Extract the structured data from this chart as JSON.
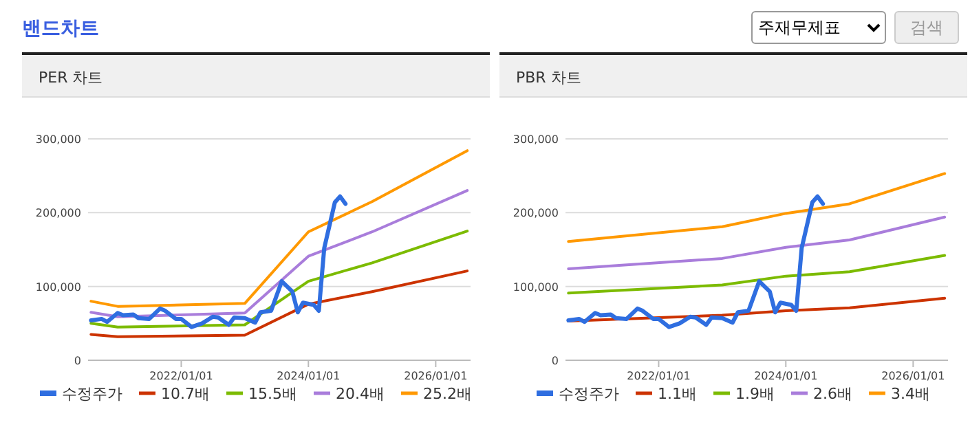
{
  "chart_data": [
    {
      "type": "other",
      "title": "밴드차트",
      "annotations": [
        "주재무제표",
        "검색"
      ]
    },
    {
      "type": "line",
      "title": "PER 차트",
      "xlim": [
        "2020-07-15",
        "2026-07-20"
      ],
      "ylim": [
        0,
        300000
      ],
      "xticks": [
        {
          "value": "2022-01-01",
          "label": "2022/01/01"
        },
        {
          "value": "2024-01-01",
          "label": "2024/01/01"
        },
        {
          "value": "2026-01-01",
          "label": "2026/01/01"
        }
      ],
      "yticks": [
        {
          "value": 0,
          "label": "0"
        },
        {
          "value": 100000,
          "label": "100,000"
        },
        {
          "value": 200000,
          "label": "200,000"
        },
        {
          "value": 300000,
          "label": "300,000"
        }
      ],
      "grid": "y",
      "legend": "bottom",
      "series": [
        {
          "name": "수정주가",
          "color": "#2f6ee0",
          "x": [
            "2020-08",
            "2020-10",
            "2020-11",
            "2021-01",
            "2021-02",
            "2021-04",
            "2021-05",
            "2021-07",
            "2021-09",
            "2021-10",
            "2021-12",
            "2022-01",
            "2022-03",
            "2022-05",
            "2022-07",
            "2022-08",
            "2022-10",
            "2022-11",
            "2023-01",
            "2023-03",
            "2023-04",
            "2023-06",
            "2023-08",
            "2023-10",
            "2023-11",
            "2023-12",
            "2024-02",
            "2024-03",
            "2024-04",
            "2024-06",
            "2024-07",
            "2024-08"
          ],
          "values": [
            54000,
            56000,
            52000,
            64000,
            61000,
            62000,
            57000,
            56000,
            70000,
            67000,
            56000,
            56000,
            45000,
            50000,
            59000,
            58000,
            48000,
            58000,
            57000,
            51000,
            65000,
            67000,
            107000,
            93000,
            65000,
            78000,
            75000,
            67000,
            152000,
            214000,
            222000,
            212000
          ]
        },
        {
          "name": "10.7배",
          "color": "#cc3300",
          "x": [
            "2020-08",
            "2021-01",
            "2023-01",
            "2024-01",
            "2025-01",
            "2026-07"
          ],
          "values": [
            35000,
            32000,
            34000,
            76000,
            93000,
            121000
          ]
        },
        {
          "name": "15.5배",
          "color": "#7cbb00",
          "x": [
            "2020-08",
            "2021-01",
            "2023-01",
            "2024-01",
            "2025-01",
            "2026-07"
          ],
          "values": [
            50000,
            45000,
            48000,
            107000,
            132000,
            175000
          ]
        },
        {
          "name": "20.4배",
          "color": "#a97ddb",
          "x": [
            "2020-08",
            "2021-01",
            "2023-01",
            "2024-01",
            "2025-01",
            "2026-07"
          ],
          "values": [
            65000,
            59000,
            64000,
            141000,
            174000,
            230000
          ]
        },
        {
          "name": "25.2배",
          "color": "#ff9900",
          "x": [
            "2020-08",
            "2021-01",
            "2023-01",
            "2024-01",
            "2025-01",
            "2026-07"
          ],
          "values": [
            80000,
            73000,
            77000,
            174000,
            215000,
            284000
          ]
        }
      ]
    },
    {
      "type": "line",
      "title": "PBR 차트",
      "xlim": [
        "2020-07-15",
        "2026-07-20"
      ],
      "ylim": [
        0,
        300000
      ],
      "xticks": [
        {
          "value": "2022-01-01",
          "label": "2022/01/01"
        },
        {
          "value": "2024-01-01",
          "label": "2024/01/01"
        },
        {
          "value": "2026-01-01",
          "label": "2026/01/01"
        }
      ],
      "yticks": [
        {
          "value": 0,
          "label": "0"
        },
        {
          "value": 100000,
          "label": "100,000"
        },
        {
          "value": 200000,
          "label": "200,000"
        },
        {
          "value": 300000,
          "label": "300,000"
        }
      ],
      "grid": "y",
      "legend": "bottom",
      "series": [
        {
          "name": "수정주가",
          "color": "#2f6ee0",
          "x": [
            "2020-08",
            "2020-10",
            "2020-11",
            "2021-01",
            "2021-02",
            "2021-04",
            "2021-05",
            "2021-07",
            "2021-09",
            "2021-10",
            "2021-12",
            "2022-01",
            "2022-03",
            "2022-05",
            "2022-07",
            "2022-08",
            "2022-10",
            "2022-11",
            "2023-01",
            "2023-03",
            "2023-04",
            "2023-06",
            "2023-08",
            "2023-10",
            "2023-11",
            "2023-12",
            "2024-02",
            "2024-03",
            "2024-04",
            "2024-06",
            "2024-07",
            "2024-08"
          ],
          "values": [
            54000,
            56000,
            52000,
            64000,
            61000,
            62000,
            57000,
            56000,
            70000,
            67000,
            56000,
            56000,
            45000,
            50000,
            59000,
            58000,
            48000,
            58000,
            57000,
            51000,
            65000,
            67000,
            107000,
            93000,
            65000,
            78000,
            75000,
            67000,
            152000,
            214000,
            222000,
            212000
          ]
        },
        {
          "name": "1.1배",
          "color": "#cc3300",
          "x": [
            "2020-08",
            "2023-01",
            "2024-01",
            "2025-01",
            "2026-07"
          ],
          "values": [
            53000,
            61000,
            67000,
            71000,
            84000
          ]
        },
        {
          "name": "1.9배",
          "color": "#7cbb00",
          "x": [
            "2020-08",
            "2023-01",
            "2024-01",
            "2025-01",
            "2026-07"
          ],
          "values": [
            91000,
            102000,
            114000,
            120000,
            142000
          ]
        },
        {
          "name": "2.6배",
          "color": "#a97ddb",
          "x": [
            "2020-08",
            "2023-01",
            "2024-01",
            "2025-01",
            "2026-07"
          ],
          "values": [
            124000,
            138000,
            153000,
            163000,
            194000
          ]
        },
        {
          "name": "3.4배",
          "color": "#ff9900",
          "x": [
            "2020-08",
            "2023-01",
            "2024-01",
            "2025-01",
            "2026-07"
          ],
          "values": [
            161000,
            181000,
            199000,
            212000,
            253000
          ]
        }
      ]
    }
  ]
}
